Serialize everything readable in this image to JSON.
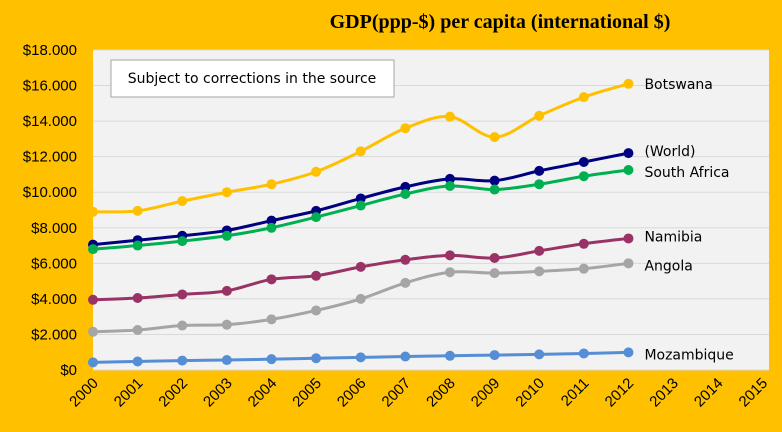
{
  "chart_data": {
    "type": "line",
    "title": "GDP(ppp-$) per capita (international  $)",
    "annotation": "Subject to corrections  in the source",
    "x": [
      2000,
      2001,
      2002,
      2003,
      2004,
      2005,
      2006,
      2007,
      2008,
      2009,
      2010,
      2011,
      2012
    ],
    "x_ticks": [
      "2000",
      "2001",
      "2002",
      "2003",
      "2004",
      "2005",
      "2006",
      "2007",
      "2008",
      "2009",
      "2010",
      "2011",
      "2012",
      "2013",
      "2014",
      "2015"
    ],
    "xlim": [
      2000,
      2015
    ],
    "ylim": [
      0,
      18000
    ],
    "y_ticks": [
      0,
      2000,
      4000,
      6000,
      8000,
      10000,
      12000,
      14000,
      16000,
      18000
    ],
    "y_tick_labels": [
      "$0",
      "$2.000",
      "$4.000",
      "$6.000",
      "$8.000",
      "$10.000",
      "$12.000",
      "$14.000",
      "$16.000",
      "$18.000"
    ],
    "grid": true,
    "plot_background": "#F2F2F2",
    "series": [
      {
        "name": "Botswana",
        "color": "#FFC000",
        "values": [
          8900,
          8950,
          9500,
          10000,
          10450,
          11150,
          12300,
          13600,
          14250,
          13100,
          14300,
          15350,
          16100
        ]
      },
      {
        "name": "(World)",
        "color": "#000080",
        "values": [
          7050,
          7300,
          7550,
          7850,
          8400,
          8950,
          9650,
          10300,
          10750,
          10650,
          11200,
          11700,
          12200
        ]
      },
      {
        "name": "South Africa",
        "color": "#00B050",
        "values": [
          6800,
          7000,
          7250,
          7550,
          8000,
          8600,
          9250,
          9900,
          10350,
          10150,
          10450,
          10900,
          11250
        ]
      },
      {
        "name": "Namibia",
        "color": "#993366",
        "values": [
          3950,
          4050,
          4250,
          4450,
          5100,
          5300,
          5800,
          6200,
          6450,
          6300,
          6700,
          7100,
          7400
        ]
      },
      {
        "name": "Angola",
        "color": "#A5A5A5",
        "values": [
          2150,
          2250,
          2500,
          2550,
          2850,
          3350,
          4000,
          4900,
          5500,
          5450,
          5550,
          5700,
          6000
        ]
      },
      {
        "name": "Mozambique",
        "color": "#558ED5",
        "values": [
          430,
          480,
          530,
          560,
          610,
          660,
          710,
          760,
          800,
          840,
          880,
          930,
          990
        ]
      }
    ]
  }
}
